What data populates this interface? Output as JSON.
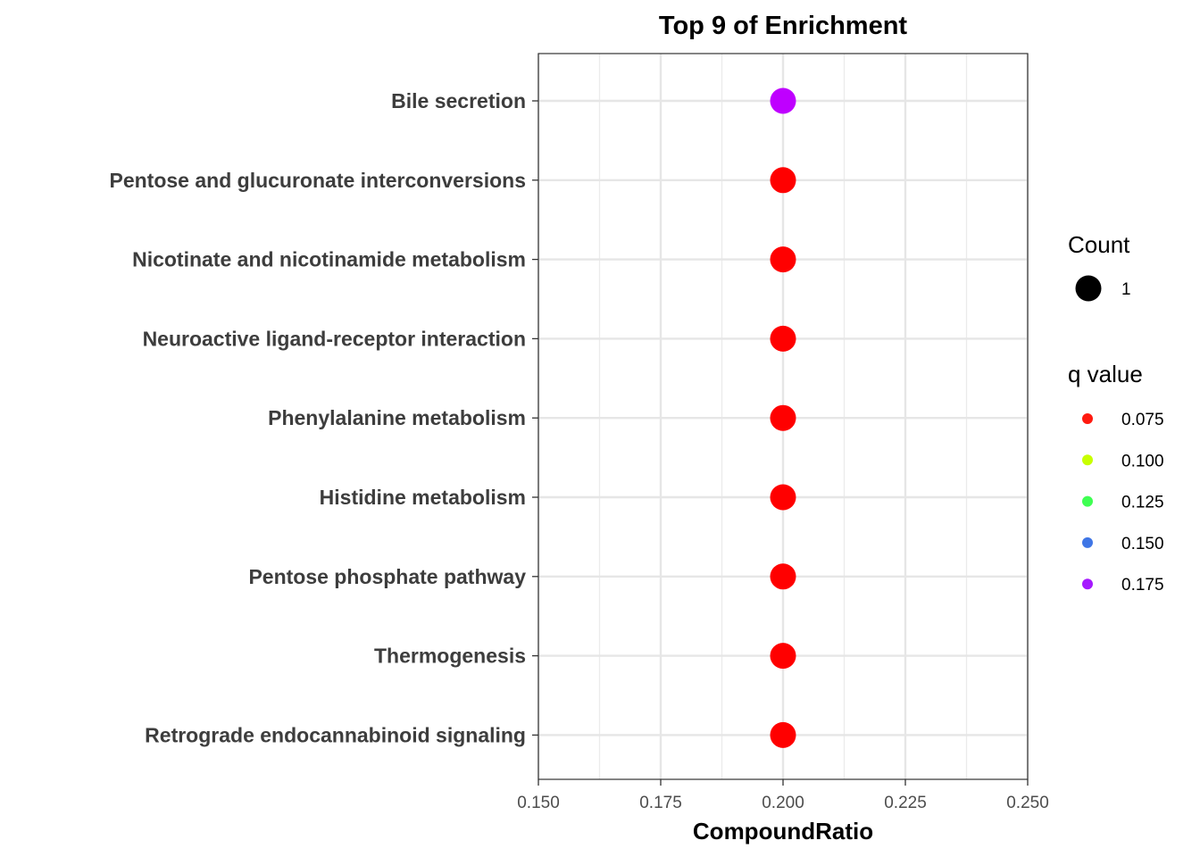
{
  "chart_data": {
    "type": "scatter",
    "title": "Top 9 of Enrichment",
    "xlabel": "CompoundRatio",
    "ylabel": "",
    "xlim": [
      0.15,
      0.25
    ],
    "x_ticks": [
      "0.150",
      "0.175",
      "0.200",
      "0.225",
      "0.250"
    ],
    "x_tick_values": [
      0.15,
      0.175,
      0.2,
      0.225,
      0.25
    ],
    "grid": true,
    "categories": [
      "Bile secretion",
      "Pentose and glucuronate interconversions",
      "Nicotinate and nicotinamide metabolism",
      "Neuroactive ligand-receptor interaction",
      "Phenylalanine metabolism",
      "Histidine metabolism",
      "Pentose phosphate pathway",
      "Thermogenesis",
      "Retrograde endocannabinoid signaling"
    ],
    "points": [
      {
        "category": "Bile secretion",
        "x": 0.2,
        "count": 1,
        "q_value": 0.175,
        "color": "#bf00ff"
      },
      {
        "category": "Pentose and glucuronate interconversions",
        "x": 0.2,
        "count": 1,
        "q_value": 0.07,
        "color": "#ff0000"
      },
      {
        "category": "Nicotinate and nicotinamide metabolism",
        "x": 0.2,
        "count": 1,
        "q_value": 0.07,
        "color": "#ff0000"
      },
      {
        "category": "Neuroactive ligand-receptor interaction",
        "x": 0.2,
        "count": 1,
        "q_value": 0.07,
        "color": "#ff0000"
      },
      {
        "category": "Phenylalanine metabolism",
        "x": 0.2,
        "count": 1,
        "q_value": 0.07,
        "color": "#ff0000"
      },
      {
        "category": "Histidine metabolism",
        "x": 0.2,
        "count": 1,
        "q_value": 0.07,
        "color": "#ff0000"
      },
      {
        "category": "Pentose phosphate pathway",
        "x": 0.2,
        "count": 1,
        "q_value": 0.07,
        "color": "#ff0000"
      },
      {
        "category": "Thermogenesis",
        "x": 0.2,
        "count": 1,
        "q_value": 0.07,
        "color": "#ff0000"
      },
      {
        "category": "Retrograde endocannabinoid signaling",
        "x": 0.2,
        "count": 1,
        "q_value": 0.07,
        "color": "#ff0000"
      }
    ],
    "legend": {
      "placement": "right",
      "count": {
        "title": "Count",
        "items": [
          {
            "label": "1",
            "color": "#000000"
          }
        ]
      },
      "qvalue": {
        "title": "q value",
        "items": [
          {
            "label": "0.075",
            "color": "#ff1a0f"
          },
          {
            "label": "0.100",
            "color": "#c8ff00"
          },
          {
            "label": "0.125",
            "color": "#3fff52"
          },
          {
            "label": "0.150",
            "color": "#3f76e6"
          },
          {
            "label": "0.175",
            "color": "#a619ff"
          }
        ]
      }
    }
  }
}
